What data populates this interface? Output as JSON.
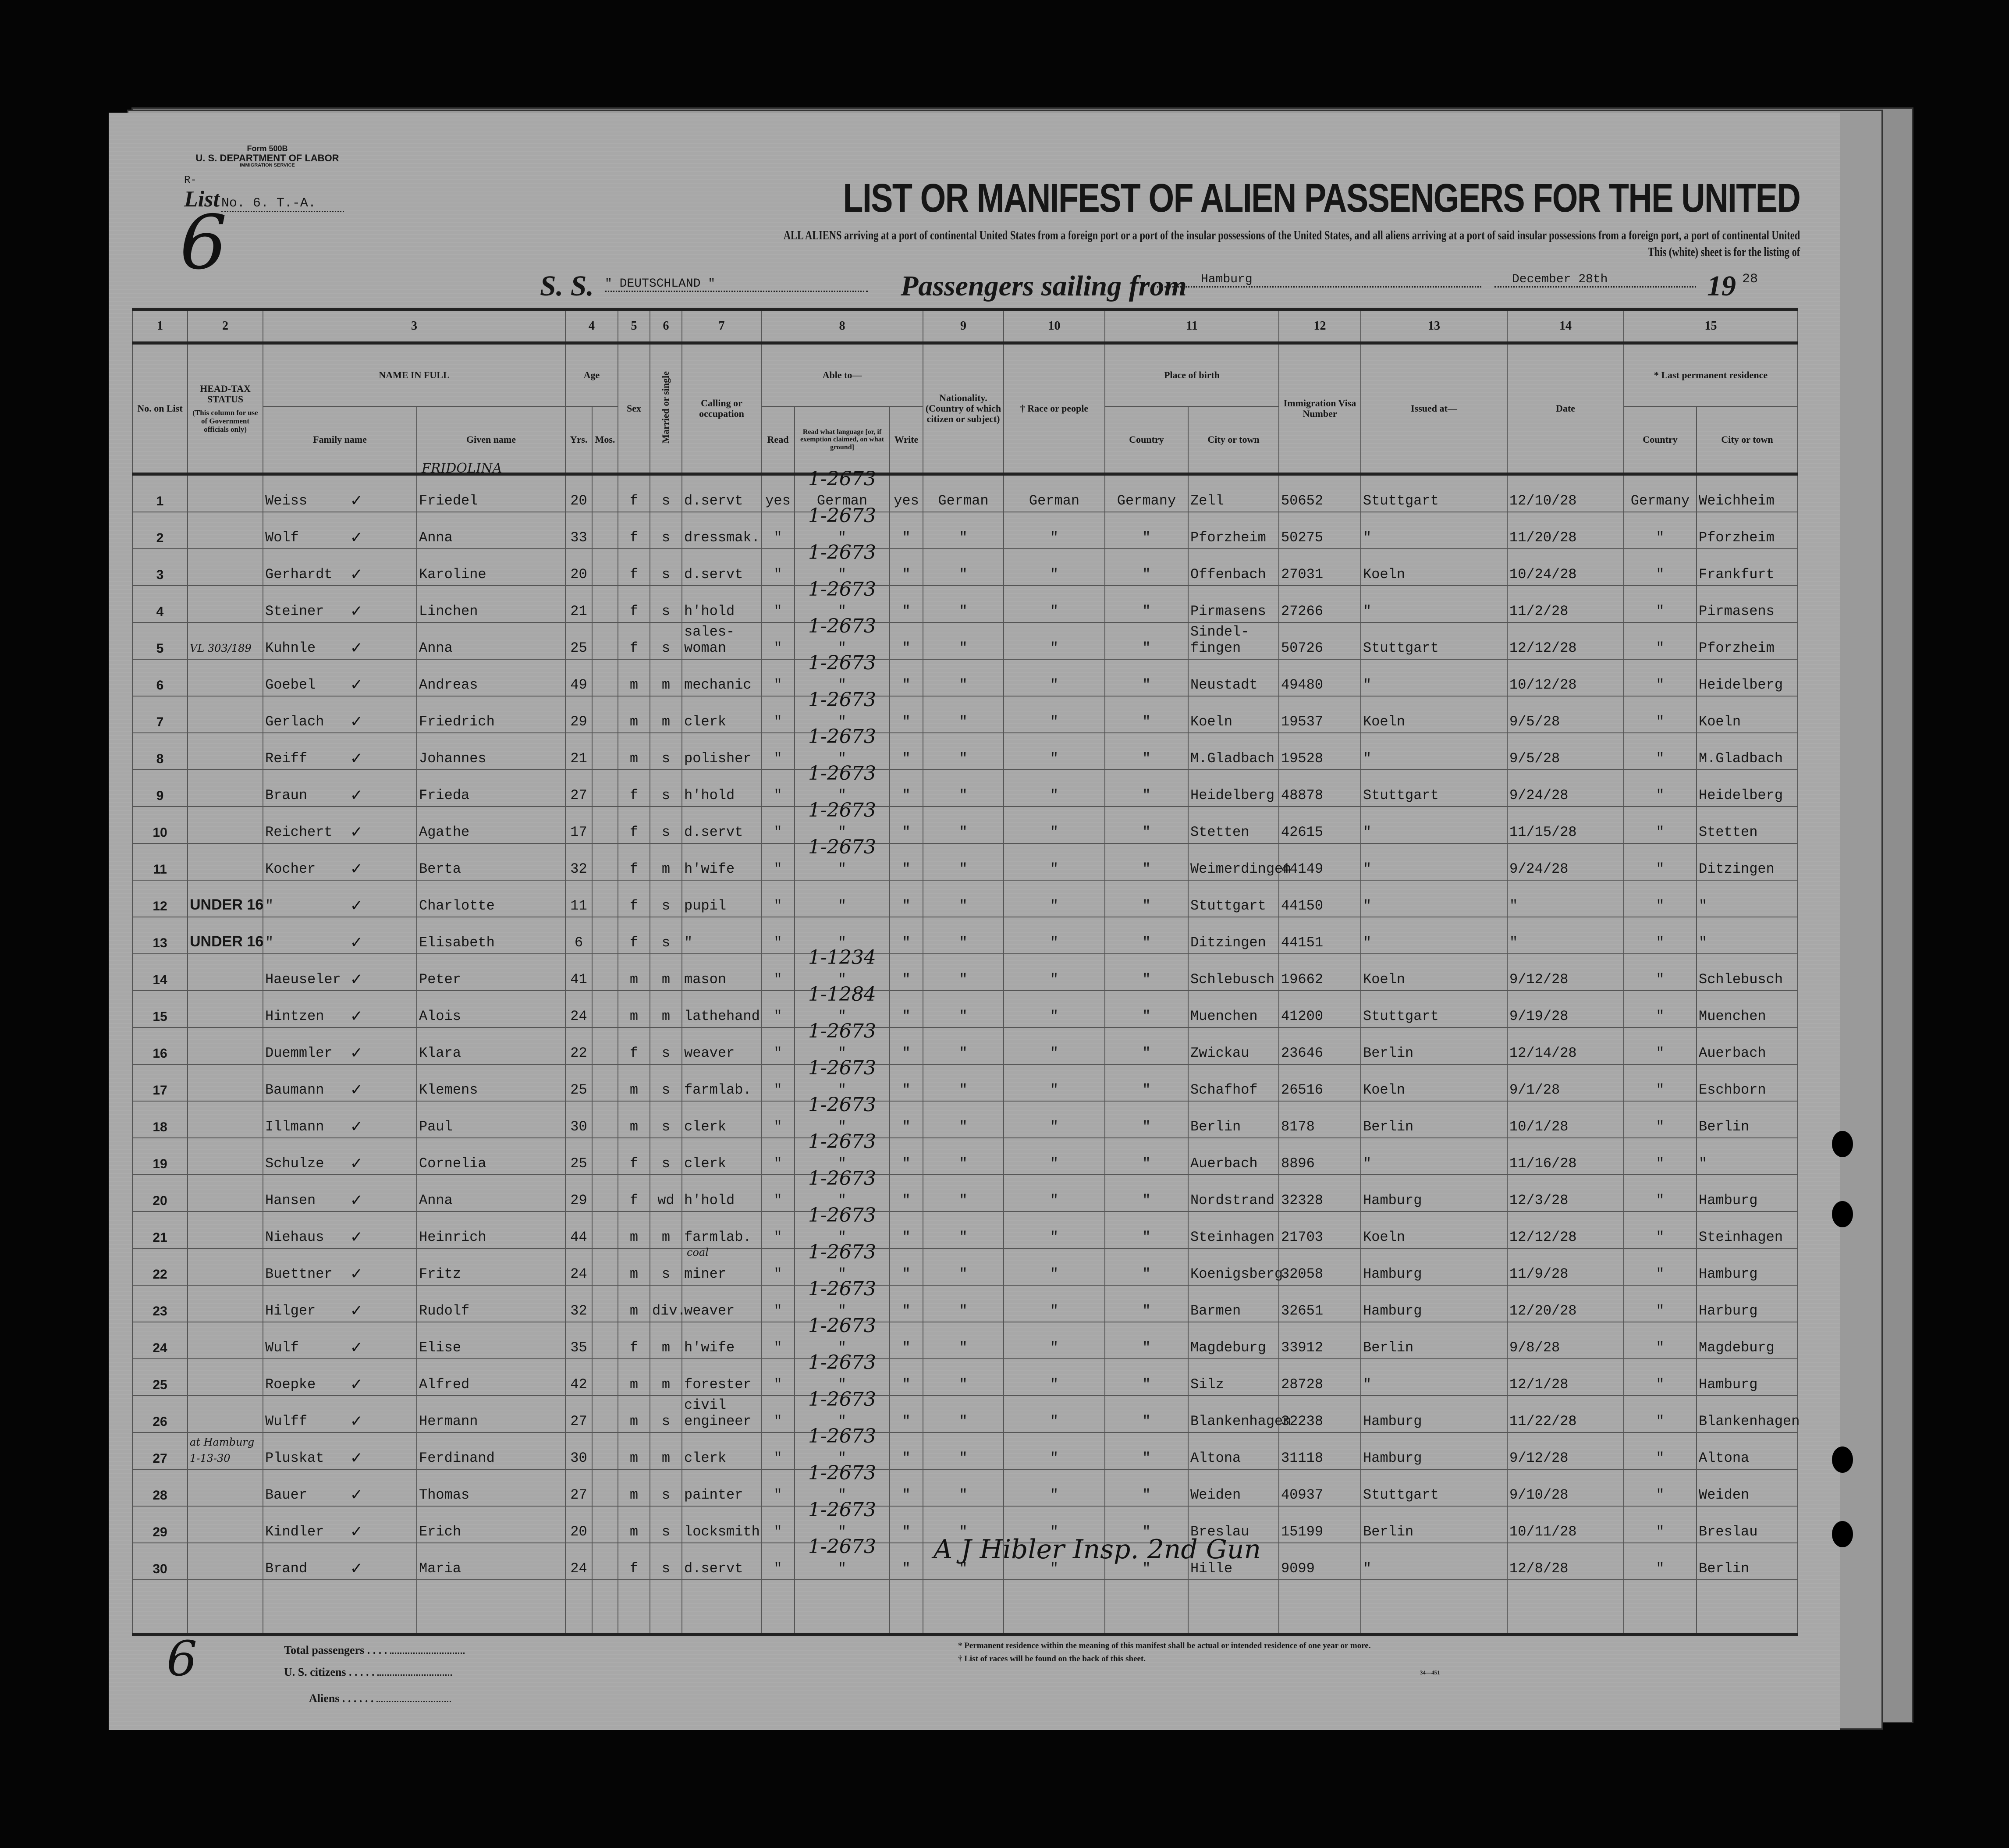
{
  "form": {
    "number": "Form 500B",
    "department": "U. S. DEPARTMENT OF LABOR",
    "service": "IMMIGRATION SERVICE"
  },
  "list": {
    "prefix": "R-",
    "label": "List",
    "number": "No. 6. T.-A.",
    "handwritten_mark": "6"
  },
  "title": "LIST OR MANIFEST OF ALIEN PASSENGERS FOR THE UNITED",
  "subtitle": "ALL ALIENS arriving at a port of continental United States from a foreign port or a port of the insular possessions of the United States, and all aliens arriving at a port of said insular possessions from a foreign port, a port of continental United",
  "subtitle2": "This (white) sheet is for the listing of",
  "voyage": {
    "ss_label": "S. S.",
    "ship": "\" DEUTSCHLAND \"",
    "sailing_label": "Passengers sailing from",
    "port": "Hamburg",
    "date": "December 28th",
    "year_prefix": "19",
    "year_suffix": "28"
  },
  "column_numbers": [
    "1",
    "2",
    "3",
    "4",
    "5",
    "6",
    "7",
    "8",
    "9",
    "10",
    "11",
    "12",
    "13",
    "14",
    "15"
  ],
  "headers": {
    "no": "No. on List",
    "head_tax": "HEAD-TAX STATUS",
    "head_tax_note": "(This column for use of Government officials only)",
    "name_in_full": "NAME IN FULL",
    "family_name": "Family name",
    "given_name": "Given name",
    "age": "Age",
    "yrs": "Yrs.",
    "mos": "Mos.",
    "sex": "Sex",
    "married": "Married or single",
    "calling": "Calling or occupation",
    "able_to": "Able to—",
    "read": "Read",
    "read_language": "Read what language [or, if exemption claimed, on what ground]",
    "write": "Write",
    "nationality": "Nationality. (Country of which citizen or subject)",
    "race": "† Race or people",
    "place_of_birth": "Place of birth",
    "birth_country": "Country",
    "birth_city": "City or town",
    "visa": "Immigration Visa Number",
    "issued_at": "Issued at—",
    "date": "Date",
    "last_residence": "* Last permanent residence",
    "res_country": "Country",
    "res_city": "City or town"
  },
  "rows": [
    {
      "no": "1",
      "head_tax": "",
      "family": "Weiss",
      "given": "Friedel",
      "given_note": "FRIDOLINA",
      "yrs": "20",
      "sex": "f",
      "ms": "s",
      "calling": "d.servt",
      "read": "yes",
      "lang": "German",
      "write": "yes",
      "nat": "German",
      "race": "German",
      "b_country": "Germany",
      "b_city": "Zell",
      "visa": "50652",
      "issued": "Stuttgart",
      "date": "12/10/28",
      "r_country": "Germany",
      "r_city": "Weichheim",
      "hand_code": "1-2673"
    },
    {
      "no": "2",
      "head_tax": "",
      "family": "Wolf",
      "given": "Anna",
      "yrs": "33",
      "sex": "f",
      "ms": "s",
      "calling": "dressmak.",
      "read": "\"",
      "lang": "\"",
      "write": "\"",
      "nat": "\"",
      "race": "\"",
      "b_country": "\"",
      "b_city": "Pforzheim",
      "visa": "50275",
      "issued": "\"",
      "date": "11/20/28",
      "r_country": "\"",
      "r_city": "Pforzheim",
      "hand_code": "1-2673"
    },
    {
      "no": "3",
      "head_tax": "",
      "family": "Gerhardt",
      "given": "Karoline",
      "yrs": "20",
      "sex": "f",
      "ms": "s",
      "calling": "d.servt",
      "read": "\"",
      "lang": "\"",
      "write": "\"",
      "nat": "\"",
      "race": "\"",
      "b_country": "\"",
      "b_city": "Offenbach",
      "visa": "27031",
      "issued": "Koeln",
      "date": "10/24/28",
      "r_country": "\"",
      "r_city": "Frankfurt",
      "hand_code": "1-2673"
    },
    {
      "no": "4",
      "head_tax": "",
      "family": "Steiner",
      "given": "Linchen",
      "yrs": "21",
      "sex": "f",
      "ms": "s",
      "calling": "h'hold",
      "read": "\"",
      "lang": "\"",
      "write": "\"",
      "nat": "\"",
      "race": "\"",
      "b_country": "\"",
      "b_city": "Pirmasens",
      "visa": "27266",
      "issued": "\"",
      "date": "11/2/28",
      "r_country": "\"",
      "r_city": "Pirmasens",
      "hand_code": "1-2673"
    },
    {
      "no": "5",
      "head_tax": "VL 303/189",
      "family": "Kuhnle",
      "given": "Anna",
      "yrs": "25",
      "sex": "f",
      "ms": "s",
      "calling": "sales-\nwoman",
      "read": "\"",
      "lang": "\"",
      "write": "\"",
      "nat": "\"",
      "race": "\"",
      "b_country": "\"",
      "b_city": "Sindel-\nfingen",
      "visa": "50726",
      "issued": "Stuttgart",
      "date": "12/12/28",
      "r_country": "\"",
      "r_city": "Pforzheim",
      "hand_code": "1-2673"
    },
    {
      "no": "6",
      "head_tax": "",
      "family": "Goebel",
      "given": "Andreas",
      "yrs": "49",
      "sex": "m",
      "ms": "m",
      "calling": "mechanic",
      "read": "\"",
      "lang": "\"",
      "write": "\"",
      "nat": "\"",
      "race": "\"",
      "b_country": "\"",
      "b_city": "Neustadt",
      "visa": "49480",
      "issued": "\"",
      "date": "10/12/28",
      "r_country": "\"",
      "r_city": "Heidelberg",
      "hand_code": "1-2673"
    },
    {
      "no": "7",
      "head_tax": "",
      "family": "Gerlach",
      "given": "Friedrich",
      "yrs": "29",
      "sex": "m",
      "ms": "m",
      "calling": "clerk",
      "read": "\"",
      "lang": "\"",
      "write": "\"",
      "nat": "\"",
      "race": "\"",
      "b_country": "\"",
      "b_city": "Koeln",
      "visa": "19537",
      "issued": "Koeln",
      "date": "9/5/28",
      "r_country": "\"",
      "r_city": "Koeln",
      "hand_code": "1-2673"
    },
    {
      "no": "8",
      "head_tax": "",
      "family": "Reiff",
      "given": "Johannes",
      "yrs": "21",
      "sex": "m",
      "ms": "s",
      "calling": "polisher",
      "read": "\"",
      "lang": "\"",
      "write": "\"",
      "nat": "\"",
      "race": "\"",
      "b_country": "\"",
      "b_city": "M.Gladbach",
      "visa": "19528",
      "issued": "\"",
      "date": "9/5/28",
      "r_country": "\"",
      "r_city": "M.Gladbach",
      "hand_code": "1-2673"
    },
    {
      "no": "9",
      "head_tax": "",
      "family": "Braun",
      "given": "Frieda",
      "yrs": "27",
      "sex": "f",
      "ms": "s",
      "calling": "h'hold",
      "read": "\"",
      "lang": "\"",
      "write": "\"",
      "nat": "\"",
      "race": "\"",
      "b_country": "\"",
      "b_city": "Heidelberg",
      "visa": "48878",
      "issued": "Stuttgart",
      "date": "9/24/28",
      "r_country": "\"",
      "r_city": "Heidelberg",
      "hand_code": "1-2673"
    },
    {
      "no": "10",
      "head_tax": "",
      "family": "Reichert",
      "given": "Agathe",
      "yrs": "17",
      "sex": "f",
      "ms": "s",
      "calling": "d.servt",
      "read": "\"",
      "lang": "\"",
      "write": "\"",
      "nat": "\"",
      "race": "\"",
      "b_country": "\"",
      "b_city": "Stetten",
      "visa": "42615",
      "issued": "\"",
      "date": "11/15/28",
      "r_country": "\"",
      "r_city": "Stetten",
      "hand_code": "1-2673"
    },
    {
      "no": "11",
      "head_tax": "",
      "family": "Kocher",
      "given": "Berta",
      "yrs": "32",
      "sex": "f",
      "ms": "m",
      "calling": "h'wife",
      "read": "\"",
      "lang": "\"",
      "write": "\"",
      "nat": "\"",
      "race": "\"",
      "b_country": "\"",
      "b_city": "Weimerdingen",
      "visa": "44149",
      "issued": "\"",
      "date": "9/24/28",
      "r_country": "\"",
      "r_city": "Ditzingen",
      "hand_code": "1-2673"
    },
    {
      "no": "12",
      "head_tax": "UNDER 16",
      "family": "\"",
      "given": "Charlotte",
      "yrs": "11",
      "sex": "f",
      "ms": "s",
      "calling": "pupil",
      "read": "\"",
      "lang": "\"",
      "write": "\"",
      "nat": "\"",
      "race": "\"",
      "b_country": "\"",
      "b_city": "Stuttgart",
      "visa": "44150",
      "issued": "\"",
      "date": "\"",
      "r_country": "\"",
      "r_city": "\"",
      "hand_code": ""
    },
    {
      "no": "13",
      "head_tax": "UNDER 16",
      "family": "\"",
      "given": "Elisabeth",
      "yrs": "6",
      "sex": "f",
      "ms": "s",
      "calling": "\"",
      "read": "\"",
      "lang": "\"",
      "write": "\"",
      "nat": "\"",
      "race": "\"",
      "b_country": "\"",
      "b_city": "Ditzingen",
      "visa": "44151",
      "issued": "\"",
      "date": "\"",
      "r_country": "\"",
      "r_city": "\"",
      "hand_code": ""
    },
    {
      "no": "14",
      "head_tax": "",
      "family": "Haeuseler",
      "given": "Peter",
      "yrs": "41",
      "sex": "m",
      "ms": "m",
      "calling": "mason",
      "read": "\"",
      "lang": "\"",
      "write": "\"",
      "nat": "\"",
      "race": "\"",
      "b_country": "\"",
      "b_city": "Schlebusch",
      "visa": "19662",
      "issued": "Koeln",
      "date": "9/12/28",
      "r_country": "\"",
      "r_city": "Schlebusch",
      "hand_code": "1-1234"
    },
    {
      "no": "15",
      "head_tax": "",
      "family": "Hintzen",
      "given": "Alois",
      "yrs": "24",
      "sex": "m",
      "ms": "m",
      "calling": "lathehand",
      "read": "\"",
      "lang": "\"",
      "write": "\"",
      "nat": "\"",
      "race": "\"",
      "b_country": "\"",
      "b_city": "Muenchen",
      "visa": "41200",
      "issued": "Stuttgart",
      "date": "9/19/28",
      "r_country": "\"",
      "r_city": "Muenchen",
      "hand_code": "1-1284"
    },
    {
      "no": "16",
      "head_tax": "",
      "family": "Duemmler",
      "given": "Klara",
      "yrs": "22",
      "sex": "f",
      "ms": "s",
      "calling": "weaver",
      "read": "\"",
      "lang": "\"",
      "write": "\"",
      "nat": "\"",
      "race": "\"",
      "b_country": "\"",
      "b_city": "Zwickau",
      "visa": "23646",
      "issued": "Berlin",
      "date": "12/14/28",
      "r_country": "\"",
      "r_city": "Auerbach",
      "hand_code": "1-2673"
    },
    {
      "no": "17",
      "head_tax": "",
      "family": "Baumann",
      "given": "Klemens",
      "yrs": "25",
      "sex": "m",
      "ms": "s",
      "calling": "farmlab.",
      "read": "\"",
      "lang": "\"",
      "write": "\"",
      "nat": "\"",
      "race": "\"",
      "b_country": "\"",
      "b_city": "Schafhof",
      "visa": "26516",
      "issued": "Koeln",
      "date": "9/1/28",
      "r_country": "\"",
      "r_city": "Eschborn",
      "hand_code": "1-2673"
    },
    {
      "no": "18",
      "head_tax": "",
      "family": "Illmann",
      "given": "Paul",
      "yrs": "30",
      "sex": "m",
      "ms": "s",
      "calling": "clerk",
      "read": "\"",
      "lang": "\"",
      "write": "\"",
      "nat": "\"",
      "race": "\"",
      "b_country": "\"",
      "b_city": "Berlin",
      "visa": "8178",
      "issued": "Berlin",
      "date": "10/1/28",
      "r_country": "\"",
      "r_city": "Berlin",
      "hand_code": "1-2673"
    },
    {
      "no": "19",
      "head_tax": "",
      "family": "Schulze",
      "given": "Cornelia",
      "yrs": "25",
      "sex": "f",
      "ms": "s",
      "calling": "clerk",
      "read": "\"",
      "lang": "\"",
      "write": "\"",
      "nat": "\"",
      "race": "\"",
      "b_country": "\"",
      "b_city": "Auerbach",
      "visa": "8896",
      "issued": "\"",
      "date": "11/16/28",
      "r_country": "\"",
      "r_city": "\"",
      "hand_code": "1-2673"
    },
    {
      "no": "20",
      "head_tax": "",
      "family": "Hansen",
      "given": "Anna",
      "yrs": "29",
      "sex": "f",
      "ms": "wd",
      "calling": "h'hold",
      "read": "\"",
      "lang": "\"",
      "write": "\"",
      "nat": "\"",
      "race": "\"",
      "b_country": "\"",
      "b_city": "Nordstrand",
      "visa": "32328",
      "issued": "Hamburg",
      "date": "12/3/28",
      "r_country": "\"",
      "r_city": "Hamburg",
      "hand_code": "1-2673"
    },
    {
      "no": "21",
      "head_tax": "",
      "family": "Niehaus",
      "given": "Heinrich",
      "yrs": "44",
      "sex": "m",
      "ms": "m",
      "calling": "farmlab.",
      "read": "\"",
      "lang": "\"",
      "write": "\"",
      "nat": "\"",
      "race": "\"",
      "b_country": "\"",
      "b_city": "Steinhagen",
      "visa": "21703",
      "issued": "Koeln",
      "date": "12/12/28",
      "r_country": "\"",
      "r_city": "Steinhagen",
      "hand_code": "1-2673"
    },
    {
      "no": "22",
      "head_tax": "",
      "family": "Buettner",
      "given": "Fritz",
      "yrs": "24",
      "sex": "m",
      "ms": "s",
      "calling": "miner",
      "calling_note": "coal",
      "read": "\"",
      "lang": "\"",
      "write": "\"",
      "nat": "\"",
      "race": "\"",
      "b_country": "\"",
      "b_city": "Koenigsberg",
      "visa": "32058",
      "issued": "Hamburg",
      "date": "11/9/28",
      "r_country": "\"",
      "r_city": "Hamburg",
      "hand_code": "1-2673"
    },
    {
      "no": "23",
      "head_tax": "",
      "family": "Hilger",
      "given": "Rudolf",
      "yrs": "32",
      "sex": "m",
      "ms": "div.",
      "calling": "weaver",
      "read": "\"",
      "lang": "\"",
      "write": "\"",
      "nat": "\"",
      "race": "\"",
      "b_country": "\"",
      "b_city": "Barmen",
      "visa": "32651",
      "issued": "Hamburg",
      "date": "12/20/28",
      "r_country": "\"",
      "r_city": "Harburg",
      "hand_code": "1-2673"
    },
    {
      "no": "24",
      "head_tax": "",
      "family": "Wulf",
      "given": "Elise",
      "yrs": "35",
      "sex": "f",
      "ms": "m",
      "calling": "h'wife",
      "read": "\"",
      "lang": "\"",
      "write": "\"",
      "nat": "\"",
      "race": "\"",
      "b_country": "\"",
      "b_city": "Magdeburg",
      "visa": "33912",
      "issued": "Berlin",
      "date": "9/8/28",
      "r_country": "\"",
      "r_city": "Magdeburg",
      "hand_code": "1-2673"
    },
    {
      "no": "25",
      "head_tax": "",
      "family": "Roepke",
      "given": "Alfred",
      "yrs": "42",
      "sex": "m",
      "ms": "m",
      "calling": "forester",
      "read": "\"",
      "lang": "\"",
      "write": "\"",
      "nat": "\"",
      "race": "\"",
      "b_country": "\"",
      "b_city": "Silz",
      "visa": "28728",
      "issued": "\"",
      "date": "12/1/28",
      "r_country": "\"",
      "r_city": "Hamburg",
      "hand_code": "1-2673"
    },
    {
      "no": "26",
      "head_tax": "",
      "family": "Wulff",
      "given": "Hermann",
      "yrs": "27",
      "sex": "m",
      "ms": "s",
      "calling": "civil\nengineer",
      "read": "\"",
      "lang": "\"",
      "write": "\"",
      "nat": "\"",
      "race": "\"",
      "b_country": "\"",
      "b_city": "Blankenhagen",
      "visa": "32238",
      "issued": "Hamburg",
      "date": "11/22/28",
      "r_country": "\"",
      "r_city": "Blankenhagen",
      "hand_code": "1-2673"
    },
    {
      "no": "27",
      "head_tax": "at Hamburg 1-13-30",
      "family": "Pluskat",
      "given": "Ferdinand",
      "yrs": "30",
      "sex": "m",
      "ms": "m",
      "calling": "clerk",
      "read": "\"",
      "lang": "\"",
      "write": "\"",
      "nat": "\"",
      "race": "\"",
      "b_country": "\"",
      "b_city": "Altona",
      "visa": "31118",
      "issued": "Hamburg",
      "date": "9/12/28",
      "r_country": "\"",
      "r_city": "Altona",
      "hand_code": "1-2673"
    },
    {
      "no": "28",
      "head_tax": "",
      "family": "Bauer",
      "given": "Thomas",
      "yrs": "27",
      "sex": "m",
      "ms": "s",
      "calling": "painter",
      "read": "\"",
      "lang": "\"",
      "write": "\"",
      "nat": "\"",
      "race": "\"",
      "b_country": "\"",
      "b_city": "Weiden",
      "visa": "40937",
      "issued": "Stuttgart",
      "date": "9/10/28",
      "r_country": "\"",
      "r_city": "Weiden",
      "hand_code": "1-2673"
    },
    {
      "no": "29",
      "head_tax": "",
      "family": "Kindler",
      "given": "Erich",
      "yrs": "20",
      "sex": "m",
      "ms": "s",
      "calling": "locksmith",
      "read": "\"",
      "lang": "\"",
      "write": "\"",
      "nat": "\"",
      "race": "\"",
      "b_country": "\"",
      "b_city": "Breslau",
      "visa": "15199",
      "issued": "Berlin",
      "date": "10/11/28",
      "r_country": "\"",
      "r_city": "Breslau",
      "hand_code": "1-2673"
    },
    {
      "no": "30",
      "head_tax": "",
      "family": "Brand",
      "given": "Maria",
      "yrs": "24",
      "sex": "f",
      "ms": "s",
      "calling": "d.servt",
      "read": "\"",
      "lang": "\"",
      "write": "\"",
      "nat": "\"",
      "race": "\"",
      "b_country": "\"",
      "b_city": "Hille",
      "visa": "9099",
      "issued": "\"",
      "date": "12/8/28",
      "r_country": "\"",
      "r_city": "Berlin",
      "hand_code": "1-2673"
    }
  ],
  "signature": "A J Hibler Insp. 2nd Gun",
  "totals": {
    "total_label": "Total passengers",
    "citizens_label": "U. S. citizens",
    "aliens_label": "Aliens",
    "handwritten_mark": "6"
  },
  "footnotes": [
    "* Permanent residence within the meaning of this manifest shall be actual or intended residence of one year or more.",
    "† List of races will be found on the back of this sheet."
  ],
  "print_code": "34—451"
}
